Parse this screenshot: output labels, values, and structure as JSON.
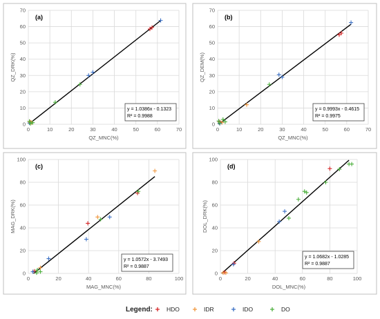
{
  "legend": {
    "label": "Legend:",
    "items": [
      {
        "name": "HDO",
        "color": "#d62728"
      },
      {
        "name": "IDR",
        "color": "#f0963c"
      },
      {
        "name": "IDO",
        "color": "#3a6fc4"
      },
      {
        "name": "DO",
        "color": "#4caf3c"
      }
    ]
  },
  "chart_data": [
    {
      "type": "scatter",
      "panel_label": "(a)",
      "xlabel": "QZ_MNC(%)",
      "ylabel": "QZ_DRK(%)",
      "xlim": [
        0,
        70
      ],
      "ylim": [
        0,
        70
      ],
      "xticks": [
        0,
        10,
        20,
        30,
        40,
        50,
        60,
        70
      ],
      "yticks": [
        0,
        10,
        20,
        30,
        40,
        50,
        60,
        70
      ],
      "trendline": {
        "slope": 1.0386,
        "intercept": -0.1323,
        "x_range": [
          0.5,
          61.5
        ]
      },
      "equation": "y = 1.0386x - 0.1323",
      "r2": "R² = 0.9988",
      "series": [
        {
          "name": "HDO",
          "points": [
            [
              56.5,
              58.5
            ],
            [
              57.5,
              59.5
            ],
            [
              1.0,
              1.2
            ]
          ]
        },
        {
          "name": "IDR",
          "points": [
            [
              1.5,
              1.0
            ],
            [
              0.8,
              1.5
            ]
          ]
        },
        {
          "name": "IDO",
          "points": [
            [
              28.0,
              30.0
            ],
            [
              30.0,
              32.0
            ],
            [
              61.5,
              63.8
            ],
            [
              0.5,
              0.8
            ]
          ]
        },
        {
          "name": "DO",
          "points": [
            [
              12.5,
              13.5
            ],
            [
              24.0,
              24.5
            ],
            [
              1.0,
              0.5
            ],
            [
              2.0,
              1.0
            ],
            [
              0.5,
              1.8
            ]
          ]
        }
      ]
    },
    {
      "type": "scatter",
      "panel_label": "(b)",
      "xlabel": "QZ_MNC(%)",
      "ylabel": "QZ_DEM(%)",
      "xlim": [
        0,
        70
      ],
      "ylim": [
        0,
        70
      ],
      "xticks": [
        0,
        10,
        20,
        30,
        40,
        50,
        60,
        70
      ],
      "yticks": [
        0,
        10,
        20,
        30,
        40,
        50,
        60,
        70
      ],
      "trendline": {
        "slope": 0.9993,
        "intercept": -0.4615,
        "x_range": [
          0.5,
          62
        ]
      },
      "equation": "y = 0.9993x - 0.4615",
      "r2": "R² = 0.9975",
      "series": [
        {
          "name": "HDO",
          "points": [
            [
              56.5,
              55.0
            ],
            [
              57.5,
              56.0
            ],
            [
              1.0,
              1.5
            ]
          ]
        },
        {
          "name": "IDR",
          "points": [
            [
              13.5,
              12.0
            ],
            [
              2.0,
              1.0
            ]
          ]
        },
        {
          "name": "IDO",
          "points": [
            [
              28.5,
              30.5
            ],
            [
              30.0,
              29.0
            ],
            [
              62.0,
              62.5
            ],
            [
              1.0,
              0.5
            ]
          ]
        },
        {
          "name": "DO",
          "points": [
            [
              24.0,
              24.5
            ],
            [
              2.5,
              3.0
            ],
            [
              3.5,
              1.5
            ],
            [
              1.0,
              0.8
            ],
            [
              0.5,
              2.0
            ]
          ]
        }
      ]
    },
    {
      "type": "scatter",
      "panel_label": "(c)",
      "xlabel": "MAG_MNC(%)",
      "ylabel": "MAG_DRK(%)",
      "xlim": [
        0,
        100
      ],
      "ylim": [
        0,
        100
      ],
      "xticks": [
        0,
        20,
        40,
        60,
        80,
        100
      ],
      "yticks": [
        0,
        20,
        40,
        60,
        80,
        100
      ],
      "trendline": {
        "slope": 1.0572,
        "intercept": -3.7493,
        "x_range": [
          3.5,
          84
        ]
      },
      "equation": "y = 1.0572x - 3.7493",
      "r2": "R² = 0.9887",
      "series": [
        {
          "name": "HDO",
          "points": [
            [
              39.5,
              44.0
            ],
            [
              72.5,
              70.5
            ],
            [
              4.0,
              2.0
            ]
          ]
        },
        {
          "name": "IDR",
          "points": [
            [
              84.0,
              90.0
            ],
            [
              46.0,
              49.5
            ],
            [
              8.0,
              5.0
            ]
          ]
        },
        {
          "name": "IDO",
          "points": [
            [
              38.5,
              30.0
            ],
            [
              54.0,
              49.5
            ],
            [
              13.5,
              13.0
            ],
            [
              3.0,
              1.5
            ]
          ]
        },
        {
          "name": "DO",
          "points": [
            [
              48.0,
              47.5
            ],
            [
              73.0,
              72.0
            ],
            [
              6.0,
              3.0
            ],
            [
              8.0,
              1.5
            ],
            [
              5.5,
              0.5
            ]
          ]
        }
      ]
    },
    {
      "type": "scatter",
      "panel_label": "(d)",
      "xlabel": "DOL_MNC(%)",
      "ylabel": "DOL_DRK(%)",
      "xlim": [
        0,
        100
      ],
      "ylim": [
        0,
        100
      ],
      "xticks": [
        0,
        20,
        40,
        60,
        80,
        100
      ],
      "yticks": [
        0,
        20,
        40,
        60,
        80,
        100
      ],
      "trendline": {
        "slope": 1.0682,
        "intercept": -1.0285,
        "x_range": [
          1,
          94
        ]
      },
      "equation": "y = 1.0682x - 1.0285",
      "r2": "R² = 0.9887",
      "series": [
        {
          "name": "HDO",
          "points": [
            [
              80.0,
              92.0
            ],
            [
              10.0,
              9.0
            ],
            [
              3.0,
              1.0
            ]
          ]
        },
        {
          "name": "IDR",
          "points": [
            [
              28.0,
              28.0
            ],
            [
              2.0,
              0.5
            ],
            [
              4.0,
              0.5
            ]
          ]
        },
        {
          "name": "IDO",
          "points": [
            [
              47.0,
              54.5
            ],
            [
              43.0,
              45.5
            ],
            [
              9.5,
              8.0
            ]
          ]
        },
        {
          "name": "DO",
          "points": [
            [
              61.5,
              72.0
            ],
            [
              57.0,
              65.0
            ],
            [
              50.0,
              48.5
            ],
            [
              77.0,
              80.0
            ],
            [
              87.0,
              91.5
            ],
            [
              94.0,
              96.0
            ],
            [
              96.0,
              96.0
            ],
            [
              63.0,
              71.0
            ]
          ]
        }
      ]
    }
  ]
}
